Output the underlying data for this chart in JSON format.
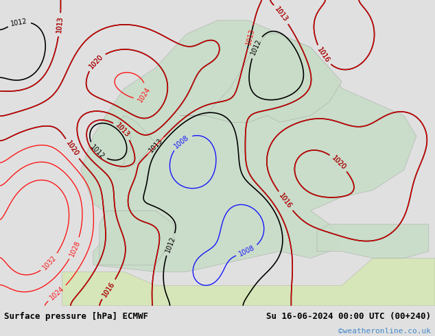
{
  "title_left": "Surface pressure [hPa] ECMWF",
  "title_right": "Su 16-06-2024 00:00 UTC (00+240)",
  "watermark": "©weatheronline.co.uk",
  "bg_color": "#e8f4e8",
  "land_color": "#c8e6c8",
  "sea_color": "#d0d8e8",
  "footer_bg": "#e8e8e8",
  "footer_text_color": "#000000",
  "watermark_color": "#4488cc",
  "fig_width": 6.34,
  "fig_height": 4.9
}
